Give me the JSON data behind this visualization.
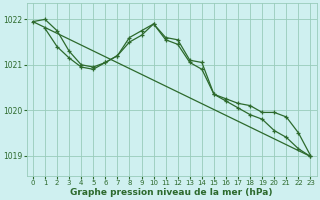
{
  "line1_x": [
    0,
    1,
    2,
    3,
    4,
    5,
    6,
    7,
    8,
    9,
    10,
    11,
    12,
    13,
    14,
    15,
    16,
    17,
    18,
    19,
    20,
    21,
    22,
    23
  ],
  "line1_y": [
    1021.95,
    1022.0,
    1021.75,
    1021.3,
    1021.0,
    1020.95,
    1021.05,
    1021.2,
    1021.6,
    1021.75,
    1021.9,
    1021.6,
    1021.55,
    1021.1,
    1021.05,
    1020.35,
    1020.25,
    1020.15,
    1020.1,
    1019.95,
    1019.95,
    1019.85,
    1019.5,
    1019.0
  ],
  "line2_x": [
    1,
    2,
    3,
    4,
    5,
    6,
    7,
    8,
    9,
    10,
    11,
    12,
    13,
    14,
    15,
    16,
    17,
    18,
    19,
    20,
    21,
    22,
    23
  ],
  "line2_y": [
    1021.8,
    1021.4,
    1021.15,
    1020.95,
    1020.9,
    1021.05,
    1021.2,
    1021.5,
    1021.65,
    1021.9,
    1021.55,
    1021.45,
    1021.05,
    1020.9,
    1020.35,
    1020.2,
    1020.05,
    1019.9,
    1019.8,
    1019.55,
    1019.4,
    1019.15,
    1018.98
  ],
  "line3_x": [
    0,
    23
  ],
  "line3_y": [
    1021.95,
    1018.98
  ],
  "line_color": "#2d6a2d",
  "bg_color": "#cff0f0",
  "grid_color": "#99ccbb",
  "xlabel": "Graphe pression niveau de la mer (hPa)",
  "xlim": [
    -0.5,
    23.5
  ],
  "ylim": [
    1018.55,
    1022.35
  ],
  "yticks": [
    1019,
    1020,
    1021,
    1022
  ],
  "xticks": [
    0,
    1,
    2,
    3,
    4,
    5,
    6,
    7,
    8,
    9,
    10,
    11,
    12,
    13,
    14,
    15,
    16,
    17,
    18,
    19,
    20,
    21,
    22,
    23
  ]
}
